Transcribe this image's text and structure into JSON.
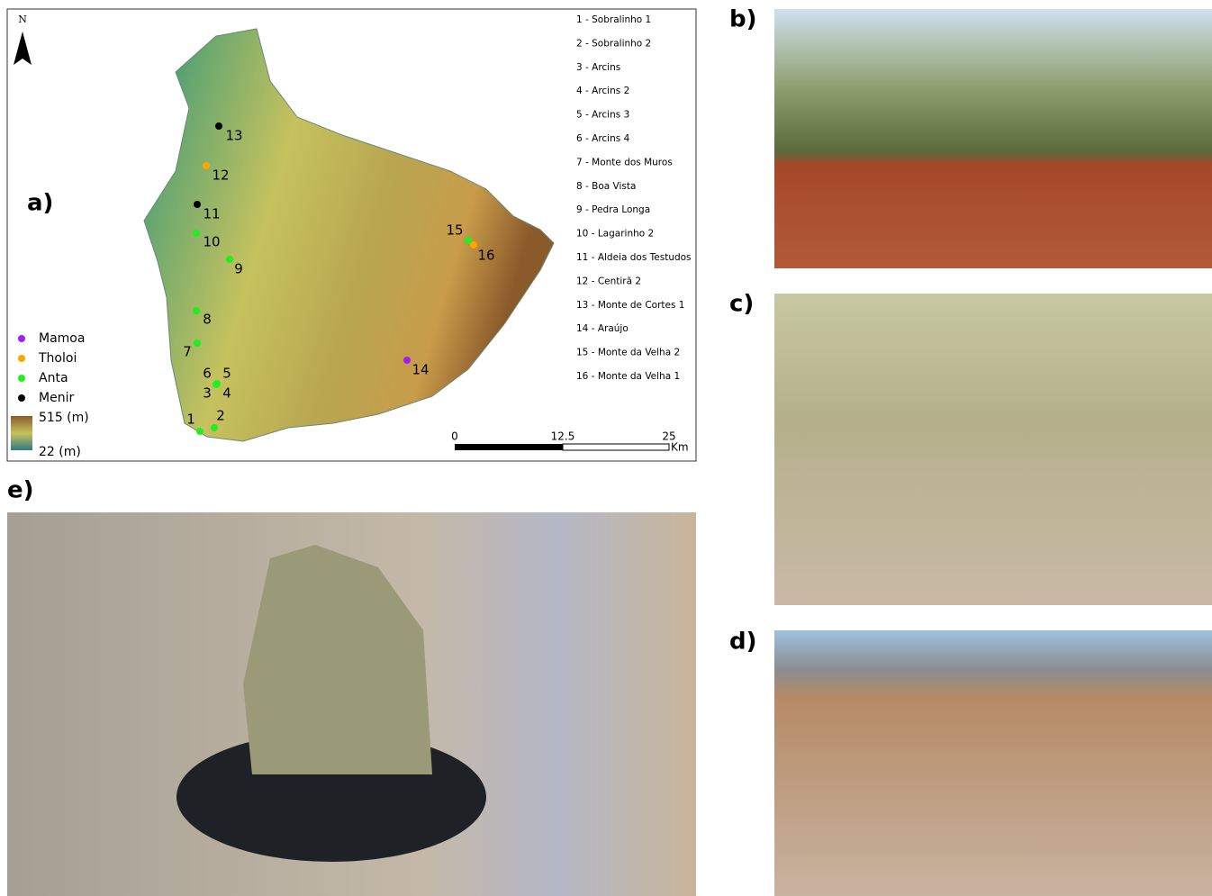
{
  "panels": [
    "a)",
    "b)",
    "c)",
    "d)",
    "e)"
  ],
  "map": {
    "north": "N",
    "legend": [
      {
        "label": "Mamoa",
        "color": "#a020f0"
      },
      {
        "label": "Tholoi",
        "color": "#ffa500"
      },
      {
        "label": "Anta",
        "color": "#22ee22"
      },
      {
        "label": "Menir",
        "color": "#000000"
      }
    ],
    "elevation": {
      "max": "515 (m)",
      "min": "22 (m)"
    },
    "scale": {
      "ticks": [
        "0",
        "12.5",
        "25"
      ],
      "unit": "Km"
    },
    "sites": [
      {
        "label": "1",
        "entry": "1 - Sobralinho 1",
        "type": 2
      },
      {
        "label": "2",
        "entry": "2 - Sobralinho 2",
        "type": 2
      },
      {
        "label": "3",
        "entry": "3 - Arcins",
        "type": 2
      },
      {
        "label": "4",
        "entry": "4 - Arcins 2",
        "type": 2
      },
      {
        "label": "5",
        "entry": "5 - Arcins 3",
        "type": 2
      },
      {
        "label": "6",
        "entry": "6 - Arcins 4",
        "type": 2
      },
      {
        "label": "7",
        "entry": "7 - Monte dos Muros",
        "type": 2
      },
      {
        "label": "8",
        "entry": "8 - Boa Vista",
        "type": 2
      },
      {
        "label": "9",
        "entry": "9 - Pedra Longa",
        "type": 2
      },
      {
        "label": "10",
        "entry": "10 - Lagarinho 2",
        "type": 2
      },
      {
        "label": "11",
        "entry": "11 - Aldeia dos Testudos",
        "type": 3
      },
      {
        "label": "12",
        "entry": "12 - Centirã 2",
        "type": 1
      },
      {
        "label": "13",
        "entry": "13 - Monte de Cortes 1",
        "type": 3
      },
      {
        "label": "14",
        "entry": "14 - Araújo",
        "type": 0
      },
      {
        "label": "15",
        "entry": "15 - Monte da Velha 2",
        "type": 2
      },
      {
        "label": "16",
        "entry": "16 - Monte da Velha 1",
        "type": 1
      }
    ]
  }
}
